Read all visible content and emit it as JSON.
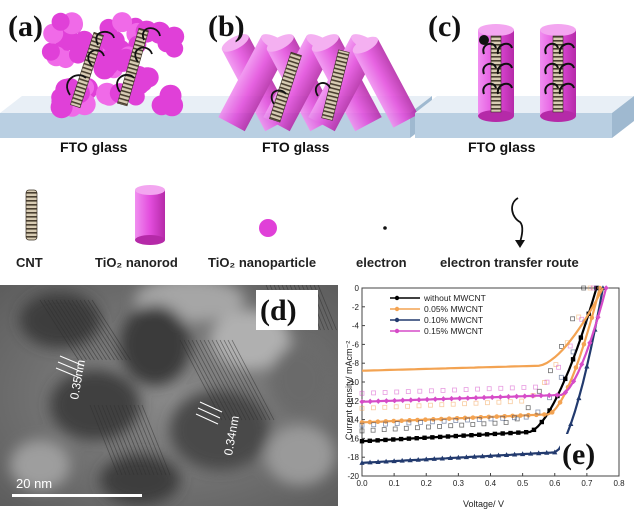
{
  "panels": {
    "a": "(a)",
    "b": "(b)",
    "c": "(c)",
    "d": "(d)",
    "e": "(e)"
  },
  "substrate": "FTO glass",
  "legend": {
    "cnt": "CNT",
    "nanorod": "TiO₂ nanorod",
    "nanoparticle": "TiO₂ nanoparticle",
    "electron": "electron",
    "route": "electron transfer route"
  },
  "tem": {
    "spacing1": "0.35nm",
    "spacing2": "0.34nm",
    "scalebar": "20 nm"
  },
  "colors": {
    "magenta": "#e040d8",
    "glass": "#cfe0ee",
    "s0": "#000000",
    "s1": "#f3a352",
    "s2": "#223a6e",
    "s3": "#d64cc8"
  },
  "chart_data": {
    "type": "line",
    "xlabel": "Voltage/ V",
    "ylabel": "Current density/ mAcm⁻²",
    "xlim": [
      0.0,
      0.8
    ],
    "ylim": [
      -20,
      0
    ],
    "xticks": [
      "0.0",
      "0.1",
      "0.2",
      "0.3",
      "0.4",
      "0.5",
      "0.6",
      "0.7",
      "0.8"
    ],
    "yticks": [
      "0",
      "-2",
      "-4",
      "-6",
      "-8",
      "-10",
      "-12",
      "-14",
      "-16",
      "-18",
      "-20"
    ],
    "legend_position": "top-right",
    "series": [
      {
        "name": "without MWCNT",
        "color": "#000000",
        "jsc": -16.3,
        "voc": 0.73,
        "vk": 0.52,
        "marker": "square",
        "dark": {
          "jsc": -15.2,
          "voc": 0.69,
          "vk": 0.46
        }
      },
      {
        "name": "0.05% MWCNT",
        "color": "#f3a352",
        "jsc": -14.3,
        "voc": 0.74,
        "vk": 0.58,
        "marker": "circle",
        "dark": {
          "jsc": -12.8,
          "voc": 0.71,
          "vk": 0.5
        }
      },
      {
        "name": "0.10% MWCNT",
        "color": "#223a6e",
        "jsc": -18.6,
        "voc": 0.75,
        "vk": 0.6,
        "marker": "triangle",
        "dark": {
          "jsc": -14.6,
          "voc": 0.73,
          "vk": 0.52
        }
      },
      {
        "name": "0.15% MWCNT",
        "color": "#d64cc8",
        "jsc": -12.1,
        "voc": 0.76,
        "vk": 0.62,
        "marker": "diamond",
        "dark": {
          "jsc": -11.2,
          "voc": 0.72,
          "vk": 0.55
        }
      },
      {
        "name": "",
        "color": "#f3a352",
        "jsc": -8.8,
        "voc": 0.75,
        "vk": 0.55,
        "marker": "none",
        "dark": null
      }
    ]
  }
}
